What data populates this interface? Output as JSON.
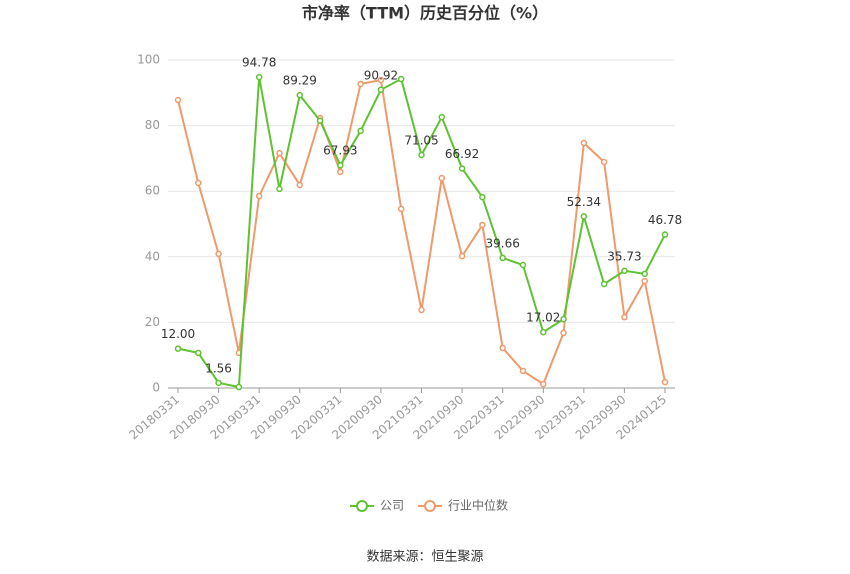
{
  "chart_data": {
    "type": "line",
    "title": "市净率（TTM）历史百分位（%）",
    "source": "数据来源：恒生聚源",
    "categories": [
      "20180331",
      null,
      "20180930",
      null,
      "20190331",
      null,
      "20190930",
      null,
      "20200331",
      null,
      "20200930",
      null,
      "20210331",
      null,
      "20210930",
      null,
      "20220331",
      null,
      "20220930",
      null,
      "20230331",
      null,
      "20230930",
      null,
      "20240125"
    ],
    "series": [
      {
        "name": "公司",
        "color": "#5ec232",
        "values": [
          12.0,
          10.7,
          1.56,
          0.3,
          94.78,
          60.7,
          89.29,
          81.5,
          67.93,
          78.4,
          90.92,
          94.2,
          71.05,
          82.6,
          66.92,
          58.2,
          39.66,
          37.5,
          17.02,
          21.0,
          52.34,
          31.7,
          35.73,
          34.8,
          46.78
        ],
        "value_labels": [
          "12.00",
          null,
          "1.56",
          null,
          "94.78",
          null,
          "89.29",
          null,
          "67.93",
          null,
          "90.92",
          null,
          "71.05",
          null,
          "66.92",
          null,
          "39.66",
          null,
          "17.02",
          null,
          "52.34",
          null,
          "35.73",
          null,
          "46.78"
        ]
      },
      {
        "name": "行业中位数",
        "color": "#f0996b",
        "values": [
          87.8,
          62.5,
          40.9,
          10.7,
          58.5,
          71.6,
          61.9,
          82.3,
          65.9,
          92.7,
          93.9,
          54.6,
          23.8,
          64.0,
          40.2,
          49.7,
          12.2,
          5.2,
          1.2,
          16.8,
          74.7,
          68.9,
          21.6,
          32.6,
          1.8
        ]
      }
    ],
    "ylim": [
      0,
      100
    ],
    "yticks": [
      0,
      20,
      40,
      60,
      80,
      100
    ],
    "grid": true,
    "legend": "bottom"
  }
}
